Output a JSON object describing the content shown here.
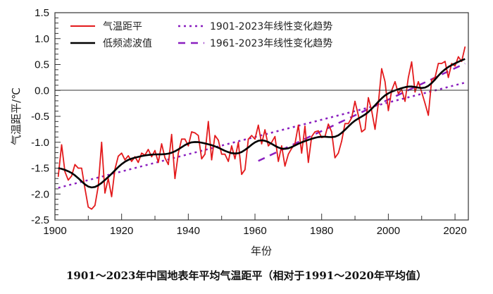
{
  "chart_data": {
    "type": "line",
    "title": "1901～2023年中国地表年平均气温距平（相对于1991～2020年平均值）",
    "xlabel": "年份",
    "ylabel": "气温距平/℃",
    "xlim": [
      1900,
      2024
    ],
    "ylim": [
      -2.5,
      1.5
    ],
    "xticks": [
      "1900",
      "1920",
      "1940",
      "1960",
      "1980",
      "2000",
      "2020"
    ],
    "yticks": [
      "1.5",
      "1.0",
      "0.5",
      "0.0",
      "-0.5",
      "-1.0",
      "-1.5",
      "-2.0",
      "-2.5"
    ],
    "legend_position": "top",
    "grid": false,
    "colors": {
      "anomaly": "#e31a1c",
      "filter": "#000000",
      "trend": "#8a1fbf"
    },
    "x_start": 1901,
    "series": [
      {
        "name": "气温距平",
        "style": "solid-red",
        "values": [
          -1.66,
          -1.05,
          -1.57,
          -1.73,
          -1.65,
          -1.43,
          -1.5,
          -1.5,
          -1.89,
          -2.25,
          -2.29,
          -2.22,
          -1.85,
          -1.0,
          -1.98,
          -1.7,
          -2.05,
          -1.52,
          -1.27,
          -1.21,
          -1.34,
          -1.26,
          -1.37,
          -1.28,
          -1.39,
          -1.21,
          -1.25,
          -1.14,
          -1.28,
          -1.16,
          -1.39,
          -1.03,
          -1.3,
          -1.43,
          -0.85,
          -1.7,
          -1.21,
          -0.94,
          -0.94,
          -1.07,
          -0.8,
          -0.82,
          -0.87,
          -1.32,
          -1.23,
          -0.6,
          -1.34,
          -0.87,
          -0.96,
          -1.23,
          -1.23,
          -1.37,
          -1.07,
          -1.32,
          -1.0,
          -1.62,
          -1.53,
          -0.94,
          -0.87,
          -0.94,
          -0.67,
          -1.03,
          -0.76,
          -1.07,
          -1.0,
          -0.89,
          -1.37,
          -1.07,
          -1.46,
          -1.23,
          -1.12,
          -1.03,
          -0.67,
          -1.21,
          -0.69,
          -1.39,
          -0.89,
          -0.8,
          -0.78,
          -0.91,
          -0.89,
          -0.65,
          -0.8,
          -1.3,
          -1.21,
          -0.98,
          -0.64,
          -0.64,
          -0.53,
          -0.21,
          -0.48,
          -0.8,
          -0.75,
          -0.14,
          -0.39,
          -0.75,
          -0.25,
          0.42,
          0.17,
          -0.39,
          0.0,
          0.17,
          -0.06,
          0.02,
          -0.21,
          0.25,
          0.55,
          -0.03,
          0.17,
          -0.03,
          -0.25,
          -0.48,
          0.2,
          0.25,
          0.52,
          0.52,
          0.56,
          0.25,
          0.52,
          0.47,
          0.65,
          0.56,
          0.84
        ]
      },
      {
        "name": "低频滤波值",
        "style": "solid-black"
      }
    ],
    "trends": [
      {
        "name": "1901-2023年线性变化趋势",
        "style": "dotted",
        "x": [
          1901,
          2023
        ],
        "y": [
          -1.88,
          0.15
        ]
      },
      {
        "name": "1961-2023年线性变化趋势",
        "style": "dashed",
        "x": [
          1961,
          2023
        ],
        "y": [
          -1.36,
          0.52
        ]
      }
    ]
  }
}
